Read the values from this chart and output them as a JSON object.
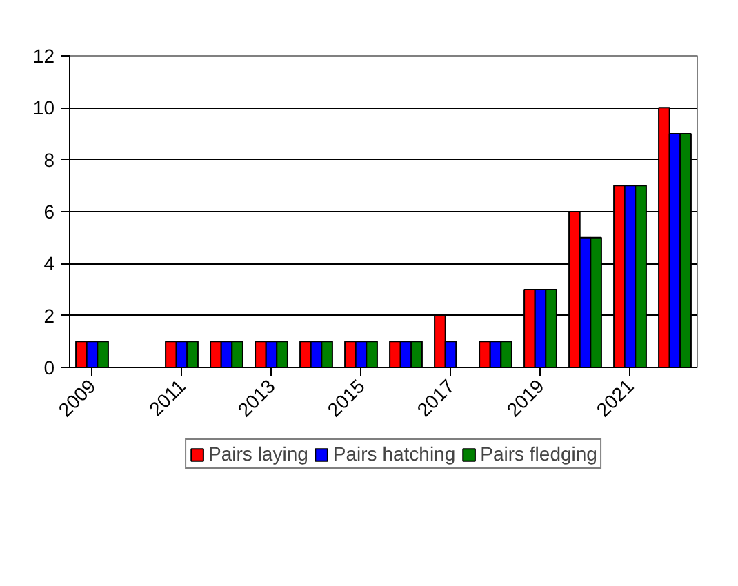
{
  "chart_data": {
    "type": "bar",
    "categories": [
      "2009",
      null,
      "2011",
      null,
      "2013",
      null,
      "2015",
      null,
      "2017",
      null,
      "2019",
      null,
      "2021",
      null
    ],
    "series": [
      {
        "name": "Pairs laying",
        "color": "#ff0000",
        "values": [
          1,
          null,
          1,
          1,
          1,
          1,
          1,
          1,
          2,
          1,
          3,
          6,
          7,
          10
        ]
      },
      {
        "name": "Pairs hatching",
        "color": "#0000ff",
        "values": [
          1,
          null,
          1,
          1,
          1,
          1,
          1,
          1,
          1,
          1,
          3,
          5,
          7,
          9
        ]
      },
      {
        "name": "Pairs fledging",
        "color": "#008000",
        "values": [
          1,
          null,
          1,
          1,
          1,
          1,
          1,
          1,
          null,
          1,
          3,
          5,
          7,
          9
        ]
      }
    ],
    "ylim": [
      0,
      12
    ],
    "yticks": [
      0,
      2,
      4,
      6,
      8,
      10,
      12
    ],
    "grid": "y",
    "legend": "bottom"
  }
}
